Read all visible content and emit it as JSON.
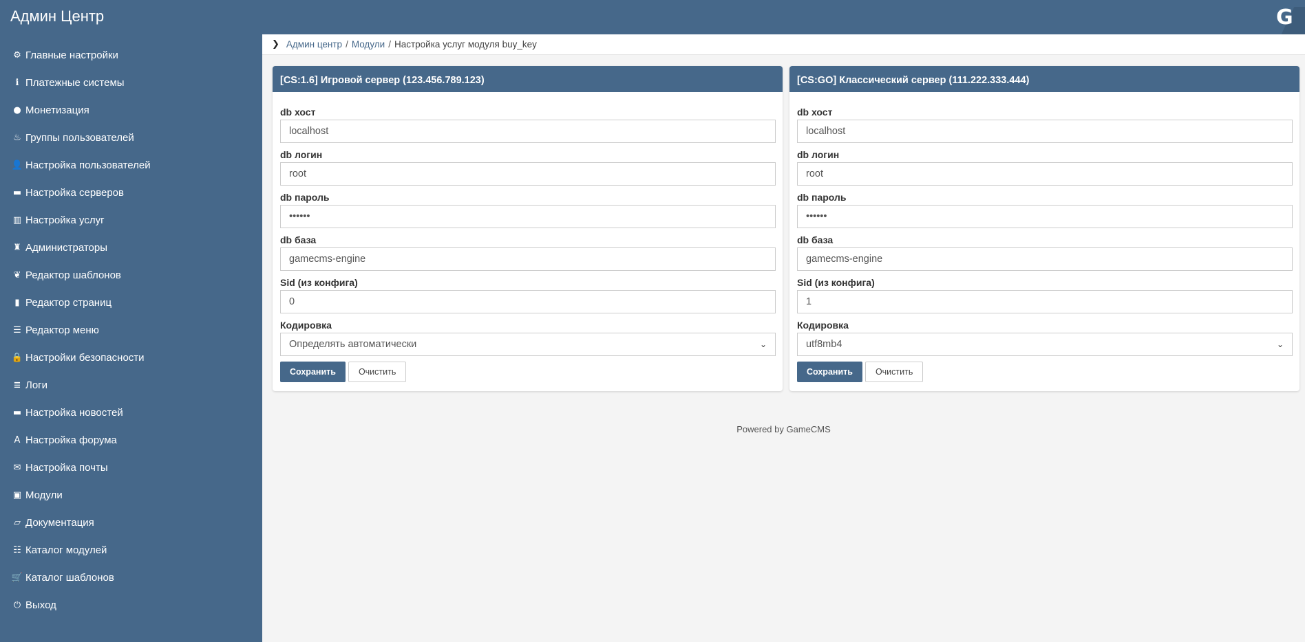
{
  "header": {
    "title": "Админ Центр",
    "logo_text": "G"
  },
  "sidebar": {
    "items": [
      {
        "label": "Главные настройки",
        "icon": "gear-icon",
        "glyph": "⚙"
      },
      {
        "label": "Платежные системы",
        "icon": "info-icon",
        "glyph": "ℹ"
      },
      {
        "label": "Монетизация",
        "icon": "piggy-bank-icon",
        "glyph": "●"
      },
      {
        "label": "Группы пользователей",
        "icon": "fire-icon",
        "glyph": "♨"
      },
      {
        "label": "Настройка пользователей",
        "icon": "user-icon",
        "glyph": "👤"
      },
      {
        "label": "Настройка серверов",
        "icon": "hdd-icon",
        "glyph": "▬"
      },
      {
        "label": "Настройка услуг",
        "icon": "barcode-icon",
        "glyph": "▥"
      },
      {
        "label": "Администраторы",
        "icon": "king-icon",
        "glyph": "♜"
      },
      {
        "label": "Редактор шаблонов",
        "icon": "leaf-icon",
        "glyph": "❦"
      },
      {
        "label": "Редактор страниц",
        "icon": "file-icon",
        "glyph": "▮"
      },
      {
        "label": "Редактор меню",
        "icon": "list-icon",
        "glyph": "☰"
      },
      {
        "label": "Настройки безопасности",
        "icon": "lock-icon",
        "glyph": "🔒"
      },
      {
        "label": "Логи",
        "icon": "align-justify-icon",
        "glyph": "≣"
      },
      {
        "label": "Настройка новостей",
        "icon": "folder-icon",
        "glyph": "▬"
      },
      {
        "label": "Настройка форума",
        "icon": "font-icon",
        "glyph": "A"
      },
      {
        "label": "Настройка почты",
        "icon": "envelope-icon",
        "glyph": "✉"
      },
      {
        "label": "Модули",
        "icon": "inbox-icon",
        "glyph": "▣"
      },
      {
        "label": "Документация",
        "icon": "folder-open-icon",
        "glyph": "▱"
      },
      {
        "label": "Каталог модулей",
        "icon": "tasks-icon",
        "glyph": "☷"
      },
      {
        "label": "Каталог шаблонов",
        "icon": "shopping-cart-icon",
        "glyph": "🛒"
      },
      {
        "label": "Выход",
        "icon": "power-off-icon",
        "glyph": "⏻"
      }
    ]
  },
  "breadcrumb": {
    "items": [
      "Админ центр",
      "Модули"
    ],
    "current": "Настройка услуг модуля buy_key",
    "separator": "/"
  },
  "panels": [
    {
      "title": "[CS:1.6] Игровой сервер (123.456.789.123)",
      "fields": [
        {
          "label": "db хост",
          "value": "localhost"
        },
        {
          "label": "db логин",
          "value": "root"
        },
        {
          "label": "db пароль",
          "value": "••••••"
        },
        {
          "label": "db база",
          "value": "gamecms-engine"
        },
        {
          "label": "Sid (из конфига)",
          "value": "0"
        },
        {
          "label": "Кодировка",
          "value": "Определять автоматически"
        }
      ],
      "save": "Сохранить",
      "clear": "Очистить"
    },
    {
      "title": "[CS:GO] Классический сервер (111.222.333.444)",
      "fields": [
        {
          "label": "db хост",
          "value": "localhost"
        },
        {
          "label": "db логин",
          "value": "root"
        },
        {
          "label": "db пароль",
          "value": "••••••"
        },
        {
          "label": "db база",
          "value": "gamecms-engine"
        },
        {
          "label": "Sid (из конфига)",
          "value": "1"
        },
        {
          "label": "Кодировка",
          "value": "utf8mb4"
        }
      ],
      "save": "Сохранить",
      "clear": "Очистить"
    }
  ],
  "footer": {
    "text": "Powered by GameCMS"
  },
  "colors": {
    "primary": "#46688a",
    "background": "#f4f4f4"
  }
}
